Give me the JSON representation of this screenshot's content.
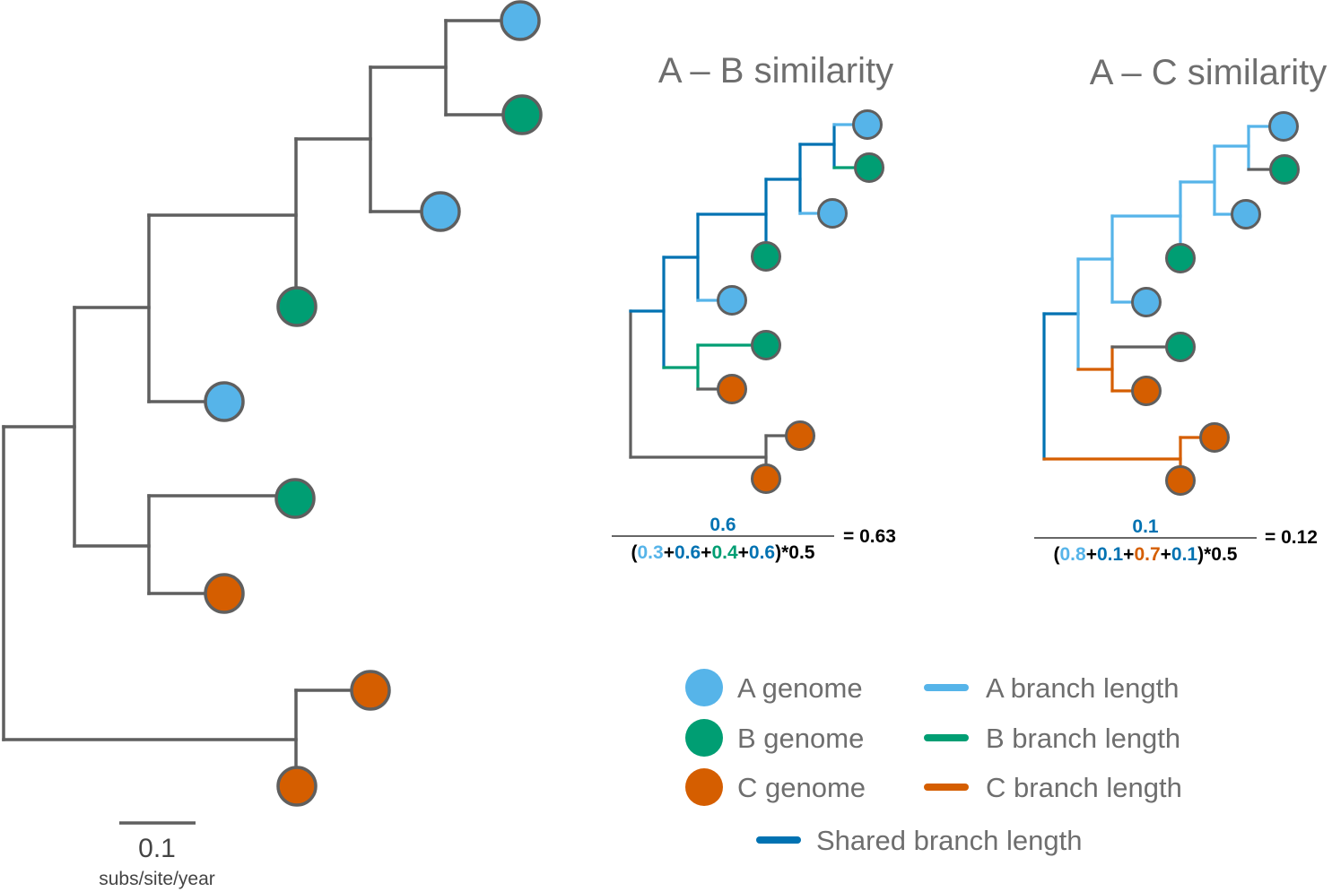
{
  "colors": {
    "a": "#56b4e9",
    "b": "#009e73",
    "c": "#d55e00",
    "shared": "#0072b2",
    "gray": "#5f5f5f",
    "black": "#000000"
  },
  "scale_bar": {
    "value": "0.1",
    "unit": "subs/site/year"
  },
  "panels": [
    {
      "title": "A – B similarity",
      "numerator": "0.6",
      "denominator_terms": [
        {
          "value": "0.3",
          "color": "a"
        },
        {
          "value": "0.6",
          "color": "shared"
        },
        {
          "value": "0.4",
          "color": "b"
        },
        {
          "value": "0.6",
          "color": "shared"
        }
      ],
      "multiplier": "*0.5",
      "result": "= 0.63"
    },
    {
      "title": "A – C similarity",
      "numerator": "0.1",
      "denominator_terms": [
        {
          "value": "0.8",
          "color": "a"
        },
        {
          "value": "0.1",
          "color": "shared"
        },
        {
          "value": "0.7",
          "color": "c"
        },
        {
          "value": "0.1",
          "color": "shared"
        }
      ],
      "multiplier": "*0.5",
      "result": "= 0.12"
    }
  ],
  "legend": {
    "genomes": [
      {
        "label": "A genome",
        "color": "a"
      },
      {
        "label": "B genome",
        "color": "b"
      },
      {
        "label": "C genome",
        "color": "c"
      }
    ],
    "branches": [
      {
        "label": "A branch length",
        "color": "a"
      },
      {
        "label": "B branch length",
        "color": "b"
      },
      {
        "label": "C branch length",
        "color": "c"
      }
    ],
    "shared": {
      "label": "Shared branch length",
      "color": "shared"
    }
  }
}
